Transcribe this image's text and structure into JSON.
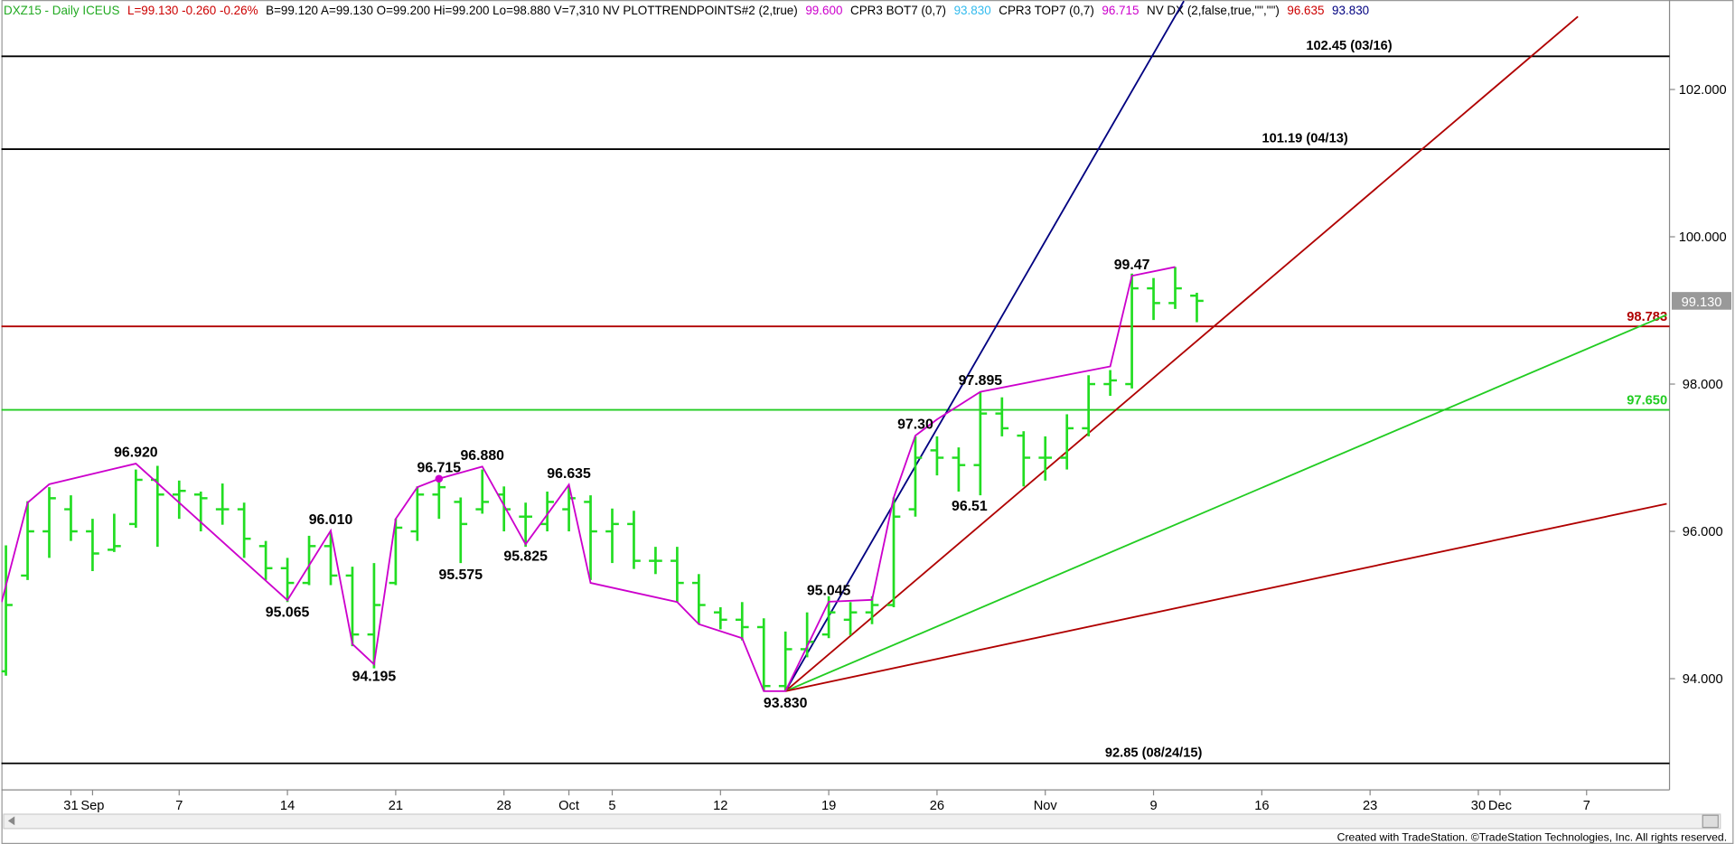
{
  "chart_data": {
    "type": "ohlc",
    "header": [
      {
        "text": "DXZ15 - Daily  ICEUS",
        "color": "#22aa22"
      },
      {
        "text": "L=99.130 -0.260 -0.26%",
        "color": "#cc0000"
      },
      {
        "text": "B=99.120  A=99.130  O=99.200  Hi=99.200  Lo=98.880  V=7,310  NV  PLOTTRENDPOINTS#2 (2,true)",
        "color": "#000000"
      },
      {
        "text": "99.600",
        "color": "#cc00cc"
      },
      {
        "text": "CPR3 BOT7 (0,7)",
        "color": "#000000"
      },
      {
        "text": "93.830",
        "color": "#33bbee"
      },
      {
        "text": "CPR3 TOP7 (0,7)",
        "color": "#000000"
      },
      {
        "text": "96.715",
        "color": "#cc00cc"
      },
      {
        "text": "NV DX (2,false,true,\"\",\"\")",
        "color": "#000000"
      },
      {
        "text": "96.635",
        "color": "#cc0000"
      },
      {
        "text": "93.830",
        "color": "#000080"
      }
    ],
    "footer": "Created with TradeStation. ©TradeStation Technologies, Inc. All rights reserved.",
    "bar_color": "#22dd22",
    "xlim": [
      -3.21,
      73.83
    ],
    "ylim": [
      92.49,
      103.215
    ],
    "yticks": [
      {
        "value": 94,
        "label": "94.000"
      },
      {
        "value": 96,
        "label": "96.000"
      },
      {
        "value": 98,
        "label": "98.000"
      },
      {
        "value": 100,
        "label": "100.000"
      },
      {
        "value": 102,
        "label": "102.000"
      }
    ],
    "xticks": [
      {
        "value": 0,
        "label": "31"
      },
      {
        "value": 1,
        "label": "Sep"
      },
      {
        "value": 5,
        "label": "7"
      },
      {
        "value": 10,
        "label": "14"
      },
      {
        "value": 15,
        "label": "21"
      },
      {
        "value": 20,
        "label": "28"
      },
      {
        "value": 23,
        "label": "Oct"
      },
      {
        "value": 25,
        "label": "5"
      },
      {
        "value": 30,
        "label": "12"
      },
      {
        "value": 35,
        "label": "19"
      },
      {
        "value": 40,
        "label": "26"
      },
      {
        "value": 45,
        "label": "Nov"
      },
      {
        "value": 50,
        "label": "9"
      },
      {
        "value": 55,
        "label": "16"
      },
      {
        "value": 60,
        "label": "23"
      },
      {
        "value": 65,
        "label": "30"
      },
      {
        "value": 66,
        "label": "Dec"
      },
      {
        "value": 70,
        "label": "7"
      }
    ],
    "x": [
      -3,
      -2,
      -1,
      0,
      1,
      2,
      3,
      4,
      5,
      6,
      7,
      8,
      9,
      10,
      11,
      12,
      13,
      14,
      15,
      16,
      17,
      18,
      19,
      20,
      21,
      22,
      23,
      24,
      25,
      26,
      27,
      28,
      29,
      30,
      31,
      32,
      33,
      34,
      35,
      36,
      37,
      38,
      39,
      40,
      41,
      42,
      43,
      44,
      45,
      46,
      47,
      48,
      49,
      50,
      51,
      52
    ],
    "open": [
      94.1,
      95.4,
      96.0,
      96.3,
      96.0,
      95.75,
      96.1,
      96.7,
      96.5,
      96.5,
      96.3,
      96.3,
      95.8,
      95.5,
      95.3,
      95.8,
      95.4,
      94.6,
      95.3,
      96.0,
      96.5,
      96.4,
      96.3,
      96.5,
      96.2,
      96.1,
      96.3,
      96.4,
      96.0,
      96.1,
      95.6,
      95.6,
      95.3,
      94.9,
      94.8,
      94.7,
      93.9,
      94.4,
      94.6,
      94.8,
      94.9,
      95.0,
      96.3,
      97.1,
      97.0,
      96.9,
      97.6,
      97.3,
      97.0,
      97.0,
      97.4,
      98.0,
      98.0,
      99.3,
      99.1,
      99.2
    ],
    "high": [
      95.81,
      96.41,
      96.6,
      96.49,
      96.17,
      96.24,
      96.84,
      96.89,
      96.69,
      96.54,
      96.65,
      96.39,
      95.87,
      95.64,
      95.94,
      95.98,
      95.52,
      95.57,
      96.17,
      96.61,
      96.76,
      96.46,
      96.84,
      96.61,
      96.39,
      96.54,
      96.61,
      96.49,
      96.31,
      96.28,
      95.79,
      95.79,
      95.42,
      94.97,
      95.04,
      94.82,
      94.64,
      94.9,
      95.12,
      95.04,
      95.12,
      96.46,
      97.29,
      97.29,
      97.14,
      97.89,
      97.82,
      97.36,
      97.29,
      97.59,
      98.12,
      98.19,
      99.5,
      99.44,
      99.59,
      99.24
    ],
    "low": [
      94.04,
      95.34,
      95.64,
      95.87,
      95.46,
      95.72,
      96.05,
      95.79,
      96.17,
      96.0,
      96.09,
      95.64,
      95.34,
      95.04,
      95.27,
      95.27,
      94.44,
      94.14,
      95.27,
      95.87,
      96.17,
      95.57,
      96.24,
      96.0,
      95.79,
      96.0,
      96.0,
      95.34,
      95.57,
      95.49,
      95.42,
      95.04,
      94.74,
      94.67,
      94.52,
      93.84,
      93.83,
      94.29,
      94.55,
      94.59,
      94.74,
      94.97,
      96.2,
      96.76,
      96.54,
      96.49,
      97.29,
      96.61,
      96.69,
      96.84,
      97.29,
      97.84,
      97.94,
      98.87,
      99.02,
      98.84
    ],
    "close": [
      95.0,
      96.0,
      96.45,
      96.0,
      95.7,
      95.8,
      96.7,
      96.5,
      96.55,
      96.45,
      96.3,
      95.9,
      95.5,
      95.3,
      95.8,
      95.4,
      94.6,
      95.0,
      96.05,
      96.5,
      96.6,
      96.1,
      96.4,
      96.3,
      96.2,
      96.4,
      96.45,
      96.0,
      96.1,
      95.6,
      95.6,
      95.3,
      95.0,
      94.8,
      94.7,
      93.9,
      94.4,
      94.5,
      94.9,
      94.9,
      95.0,
      96.2,
      97.0,
      97.0,
      96.9,
      97.6,
      97.4,
      97.0,
      97.0,
      97.4,
      98.0,
      98.05,
      99.3,
      99.1,
      99.3,
      99.13
    ],
    "zigzag": {
      "color": "#cc00cc",
      "x": [
        -3.2,
        -2,
        -1,
        3,
        10,
        12,
        13,
        14,
        15,
        16,
        17,
        19,
        21,
        23,
        24,
        28,
        29,
        31,
        32,
        33,
        35,
        37,
        38,
        39,
        40,
        42,
        48,
        49,
        51
      ],
      "values": [
        95.04,
        96.39,
        96.64,
        96.92,
        95.065,
        96.01,
        94.47,
        94.195,
        96.17,
        96.6,
        96.715,
        96.88,
        95.825,
        96.635,
        95.3,
        95.04,
        94.74,
        94.55,
        93.83,
        93.83,
        95.045,
        95.07,
        96.46,
        97.3,
        97.52,
        97.895,
        98.24,
        99.47,
        99.59
      ]
    },
    "pivot_dot": {
      "x": 17,
      "value": 96.715,
      "color": "#cc00cc"
    },
    "hlines": [
      {
        "value": 102.45,
        "label": "102.45 (03/16)",
        "color": "#000000"
      },
      {
        "value": 101.19,
        "label": "101.19 (04/13)",
        "color": "#000000"
      },
      {
        "value": 98.783,
        "label": "98.783",
        "color": "#b00000"
      },
      {
        "value": 97.65,
        "label": "97.650",
        "color": "#22cc22"
      },
      {
        "value": 92.85,
        "label": "92.85 (08/24/15)",
        "color": "#000000"
      }
    ],
    "trendlines": [
      {
        "color": "#000080",
        "x": [
          33,
          51.4
        ],
        "values": [
          93.83,
          103.2
        ]
      },
      {
        "color": "#b00000",
        "x": [
          33,
          69.6
        ],
        "values": [
          93.83,
          102.99
        ]
      },
      {
        "color": "#22cc22",
        "x": [
          33,
          73.7
        ],
        "values": [
          93.83,
          98.94
        ]
      },
      {
        "color": "#b00000",
        "x": [
          33,
          73.7
        ],
        "values": [
          93.83,
          96.375
        ]
      }
    ],
    "annotations": [
      {
        "x": 3,
        "value": 96.92,
        "label": "96.920"
      },
      {
        "x": 10,
        "value": 95.065,
        "label": "95.065"
      },
      {
        "x": 12,
        "value": 96.01,
        "label": "96.010"
      },
      {
        "x": 14,
        "value": 94.195,
        "label": "94.195"
      },
      {
        "x": 17,
        "value": 96.715,
        "label": "96.715"
      },
      {
        "x": 19,
        "value": 96.88,
        "label": "96.880"
      },
      {
        "x": 18,
        "value": 95.575,
        "label": "95.575"
      },
      {
        "x": 21,
        "value": 95.825,
        "label": "95.825"
      },
      {
        "x": 23,
        "value": 96.635,
        "label": "96.635"
      },
      {
        "x": 33,
        "value": 93.83,
        "label": "93.830"
      },
      {
        "x": 35,
        "value": 95.045,
        "label": "95.045"
      },
      {
        "x": 39,
        "value": 97.3,
        "label": "97.30"
      },
      {
        "x": 42,
        "value": 97.895,
        "label": "97.895"
      },
      {
        "x": 41.5,
        "value": 96.51,
        "label": "96.51"
      },
      {
        "x": 49,
        "value": 99.47,
        "label": "99.47"
      }
    ],
    "last_price": {
      "value": 99.13,
      "label": "99.130"
    }
  }
}
